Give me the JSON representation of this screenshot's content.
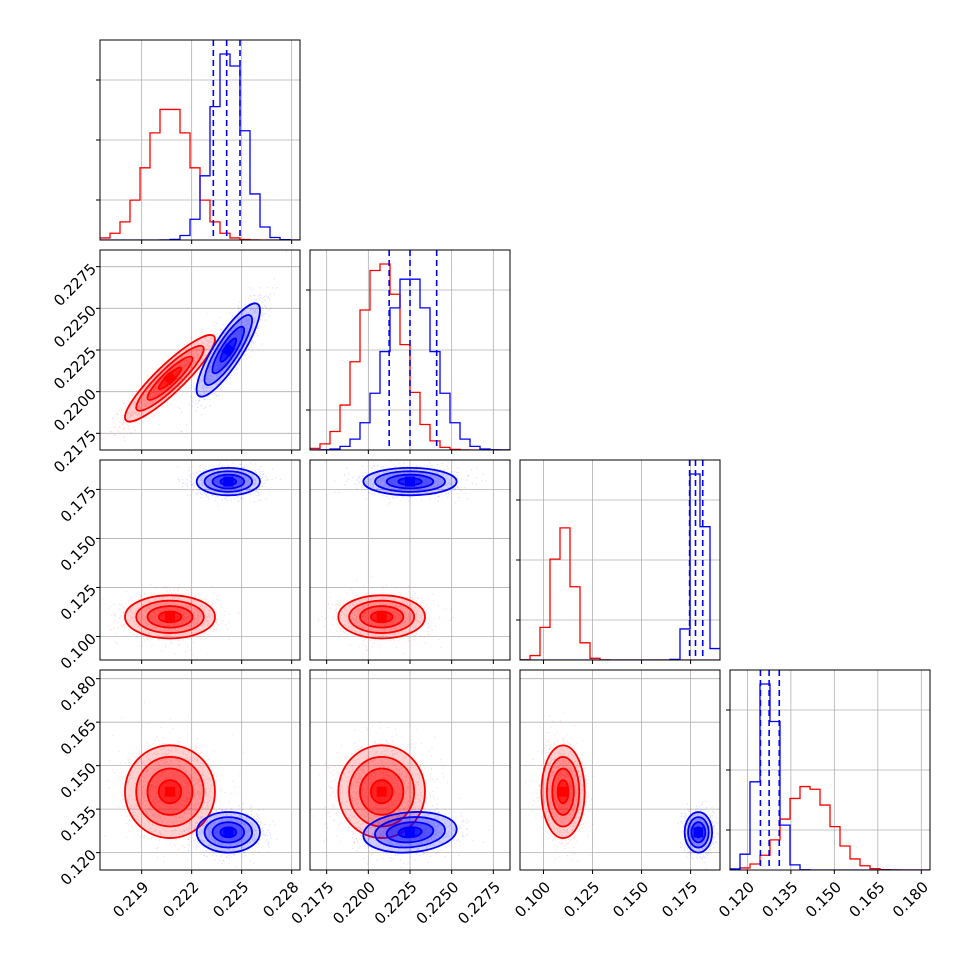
{
  "chart_data": {
    "type": "corner",
    "grid": true,
    "parameters": [
      {
        "ticks": [
          0.219,
          0.222,
          0.225,
          0.228
        ],
        "tick_labels": [
          "0.219",
          "0.222",
          "0.225",
          "0.228"
        ],
        "range": [
          0.2165,
          0.2285
        ]
      },
      {
        "ticks": [
          0.2175,
          0.22,
          0.2225,
          0.225,
          0.2275
        ],
        "tick_labels": [
          "0.2175",
          "0.2200",
          "0.2225",
          "0.2250",
          "0.2275"
        ],
        "range": [
          0.2165,
          0.2285
        ]
      },
      {
        "ticks": [
          0.1,
          0.125,
          0.15,
          0.175
        ],
        "tick_labels": [
          "0.100",
          "0.125",
          "0.150",
          "0.175"
        ],
        "range": [
          0.088,
          0.19
        ]
      },
      {
        "ticks": [
          0.12,
          0.135,
          0.15,
          0.165,
          0.18
        ],
        "tick_labels": [
          "0.120",
          "0.135",
          "0.150",
          "0.165",
          "0.180"
        ],
        "range": [
          0.114,
          0.183
        ]
      }
    ],
    "series": [
      {
        "color": "#ff0000",
        "mean": [
          0.2207,
          0.2208,
          0.11,
          0.141
        ],
        "sd": [
          0.00135,
          0.0013,
          0.0055,
          0.008
        ],
        "corr": {
          "0_1": 0.9
        },
        "quantiles": null
      },
      {
        "color": "#0000ff",
        "mean": [
          0.2242,
          0.2225,
          0.179,
          0.127
        ],
        "sd": [
          0.00095,
          0.0014,
          0.0035,
          0.0035
        ],
        "corr": {
          "0_1": 0.85,
          "1_3": 0.15
        },
        "quantiles": [
          [
            0.2233,
            0.2241,
            0.2249
          ],
          [
            0.22125,
            0.2225,
            0.2241
          ],
          [
            0.1745,
            0.1775,
            0.1812
          ],
          [
            0.1245,
            0.1275,
            0.131
          ]
        ]
      }
    ]
  },
  "colors": {
    "red": "#ff0000",
    "blue": "#0000ff",
    "grid": "#b0b0b0"
  }
}
